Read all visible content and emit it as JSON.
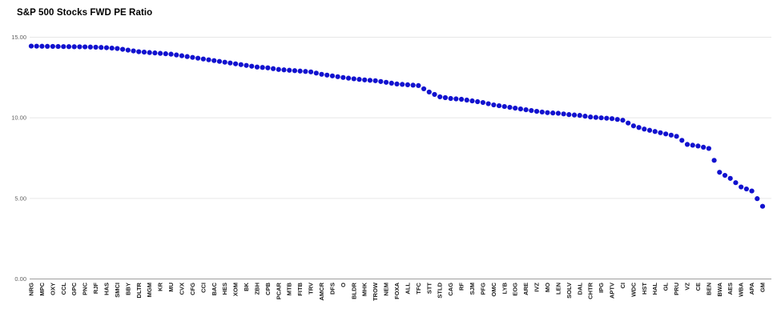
{
  "chart_data": {
    "type": "scatter",
    "title": "S&P 500 Stocks FWD PE Ratio",
    "xlabel": "",
    "ylabel": "",
    "ylim": [
      0,
      15
    ],
    "y_ticks": [
      {
        "label": "0.00",
        "value": 0
      },
      {
        "label": "5.00",
        "value": 5
      },
      {
        "label": "10.00",
        "value": 10
      },
      {
        "label": "15.00",
        "value": 15
      }
    ],
    "grid": "horizontal",
    "legend": "none",
    "marker": "circle",
    "series_name": "FWD PE Ratio",
    "series_color": "#1212cf",
    "gridline_color": "#e6e6e6",
    "axis_line_color": "#9e9e9e",
    "y_label_color": "#616161",
    "x_label_color": "#212121",
    "x_labels_rotated_degrees": -90,
    "interpolated_points_between_categories": true,
    "categories": [
      "NRG",
      "MPC",
      "OXY",
      "CCL",
      "GPC",
      "PNC",
      "RJF",
      "HAS",
      "SMCI",
      "BBY",
      "DLTR",
      "MGM",
      "KR",
      "MU",
      "CVX",
      "CFG",
      "CCI",
      "BAC",
      "HES",
      "XOM",
      "BK",
      "ZBH",
      "CPB",
      "PCAR",
      "MTB",
      "FITB",
      "TRV",
      "AMCR",
      "DFS",
      "O",
      "BLDR",
      "MHK",
      "TROW",
      "NEM",
      "FOXA",
      "ALL",
      "TFC",
      "STT",
      "STLD",
      "CAG",
      "RF",
      "SJM",
      "PFG",
      "OMC",
      "LYB",
      "EOG",
      "ARE",
      "IVZ",
      "MO",
      "LEN",
      "SOLV",
      "DAL",
      "CHTR",
      "IPG",
      "APTV",
      "CI",
      "WDC",
      "HST",
      "HAL",
      "GL",
      "PRU",
      "VZ",
      "CE",
      "BEN",
      "BWA",
      "AES",
      "WBA",
      "APA",
      "GM"
    ],
    "values": [
      14.45,
      14.44,
      14.43,
      14.42,
      14.41,
      14.4,
      14.38,
      14.35,
      14.3,
      14.2,
      14.1,
      14.05,
      14.0,
      13.95,
      13.85,
      13.75,
      13.65,
      13.55,
      13.45,
      13.35,
      13.25,
      13.15,
      13.1,
      13.0,
      12.95,
      12.9,
      12.85,
      12.7,
      12.6,
      12.5,
      12.42,
      12.35,
      12.3,
      12.2,
      12.1,
      12.05,
      12.0,
      11.6,
      11.3,
      11.2,
      11.15,
      11.05,
      10.95,
      10.8,
      10.7,
      10.6,
      10.5,
      10.4,
      10.32,
      10.28,
      10.2,
      10.15,
      10.05,
      10.0,
      9.95,
      9.85,
      9.5,
      9.3,
      9.15,
      9.0,
      8.85,
      8.35,
      8.25,
      8.1,
      6.62,
      6.24,
      5.71,
      5.46,
      4.51
    ]
  }
}
